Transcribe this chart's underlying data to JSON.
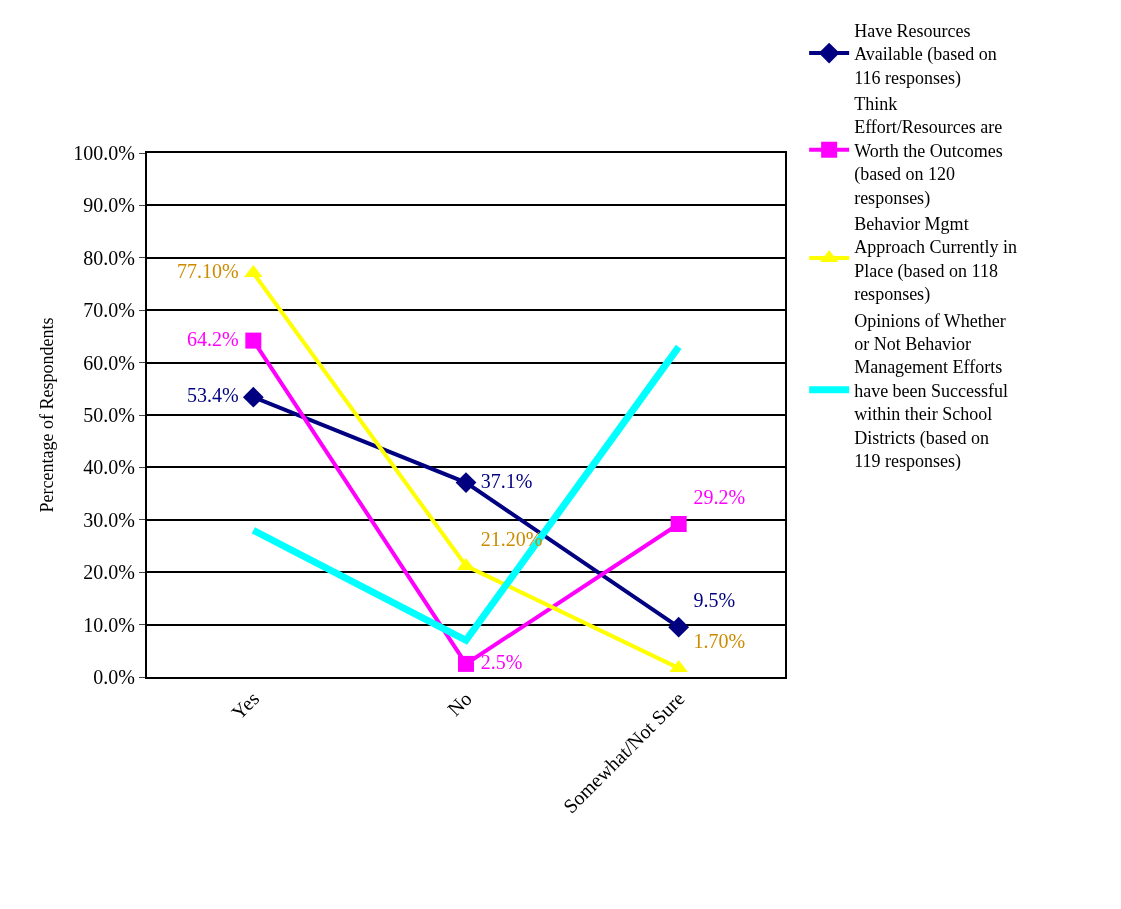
{
  "chart_data": {
    "type": "line",
    "ylabel": "Percentage of Respondents",
    "categories": [
      "Yes",
      "No",
      "Somewhat/Not Sure"
    ],
    "series": [
      {
        "name": "Have Resources Available (based on 116 responses)",
        "color": "#000080",
        "marker": "diamond",
        "values": [
          53.4,
          37.1,
          9.5
        ],
        "value_labels": [
          "53.4%",
          "37.1%",
          "9.5%"
        ]
      },
      {
        "name": "Think Effort/Resources are Worth the Outcomes (based on 120 responses)",
        "color": "#ff00ff",
        "marker": "square",
        "values": [
          64.2,
          2.5,
          29.2
        ],
        "value_labels": [
          "64.2%",
          "2.5%",
          "29.2%"
        ]
      },
      {
        "name": "Behavior Mgmt Approach Currently in Place (based on 118 responses)",
        "color": "#ffff00",
        "marker": "triangle",
        "values": [
          77.1,
          21.2,
          1.7
        ],
        "value_labels": [
          "77.10%",
          "21.20%",
          "1.70%"
        ]
      },
      {
        "name": "Opinions of Whether or Not Behavior Management Efforts have been Successful within their School Districts (based on 119 responses)",
        "color": "#00ffff",
        "marker": "none",
        "values": [
          28,
          7,
          63
        ]
      }
    ],
    "ylim": [
      0,
      100
    ],
    "yticks": [
      {
        "value": 0,
        "label": "0.0%"
      },
      {
        "value": 10,
        "label": "10.0%"
      },
      {
        "value": 20,
        "label": "20.0%"
      },
      {
        "value": 30,
        "label": "30.0%"
      },
      {
        "value": 40,
        "label": "40.0%"
      },
      {
        "value": 50,
        "label": "50.0%"
      },
      {
        "value": 60,
        "label": "60.0%"
      },
      {
        "value": 70,
        "label": "70.0%"
      },
      {
        "value": 80,
        "label": "80.0%"
      },
      {
        "value": 90,
        "label": "90.0%"
      },
      {
        "value": 100,
        "label": "100.0%"
      }
    ],
    "grid": "y",
    "legend": "right"
  }
}
